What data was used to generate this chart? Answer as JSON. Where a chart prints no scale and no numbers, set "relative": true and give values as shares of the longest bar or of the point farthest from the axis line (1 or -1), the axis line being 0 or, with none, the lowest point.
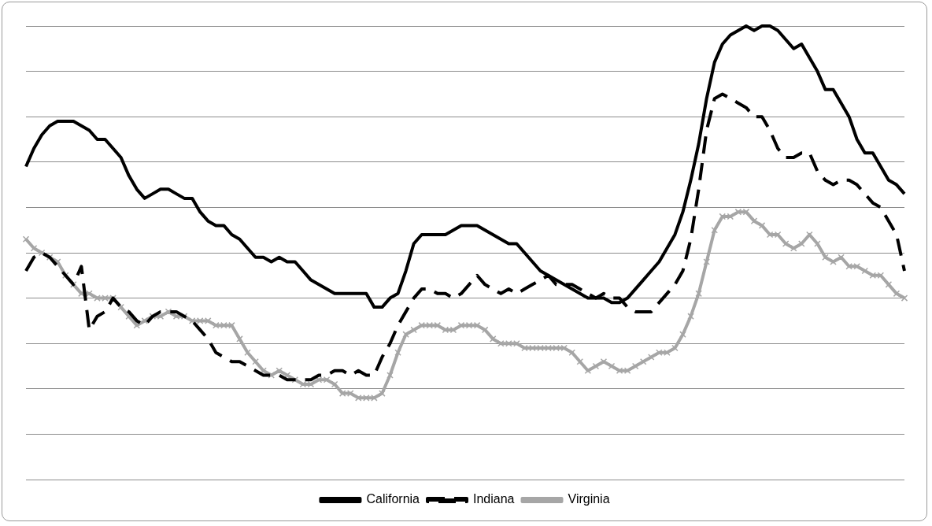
{
  "chart_data": {
    "type": "line",
    "relative": true,
    "grid": "y",
    "legend": "bottom",
    "categories": [
      null,
      null,
      null,
      null,
      null,
      null,
      null,
      null,
      null,
      null,
      null,
      null,
      null,
      null,
      null,
      null,
      null,
      null,
      null,
      null,
      null,
      null,
      null,
      null,
      null,
      null,
      null,
      null,
      null,
      null,
      null,
      null,
      null,
      null,
      null,
      null,
      null,
      null,
      null,
      null,
      null,
      null,
      null,
      null,
      null,
      null,
      null,
      null,
      null,
      null,
      null,
      null,
      null,
      null,
      null,
      null,
      null,
      null,
      null,
      null,
      null,
      null,
      null,
      null,
      null,
      null,
      null,
      null,
      null,
      null,
      null,
      null,
      null,
      null,
      null,
      null,
      null,
      null,
      null,
      null,
      null,
      null,
      null,
      null,
      null,
      null,
      null,
      null,
      null,
      null,
      null,
      null,
      null,
      null,
      null,
      null,
      null,
      null,
      null,
      null,
      null,
      null,
      null,
      null,
      null,
      null,
      null,
      null,
      null,
      null,
      null,
      null
    ],
    "series": [
      {
        "name": "California",
        "color": "#000000",
        "line_style": "solid",
        "marker": "none",
        "values": [
          0.69,
          0.73,
          0.76,
          0.78,
          0.79,
          0.79,
          0.79,
          0.78,
          0.77,
          0.75,
          0.75,
          0.73,
          0.71,
          0.67,
          0.64,
          0.62,
          0.63,
          0.64,
          0.64,
          0.63,
          0.62,
          0.62,
          0.59,
          0.57,
          0.56,
          0.56,
          0.54,
          0.53,
          0.51,
          0.49,
          0.49,
          0.48,
          0.49,
          0.48,
          0.48,
          0.46,
          0.44,
          0.43,
          0.42,
          0.41,
          0.41,
          0.41,
          0.41,
          0.41,
          0.38,
          0.38,
          0.4,
          0.41,
          0.46,
          0.52,
          0.54,
          0.54,
          0.54,
          0.54,
          0.55,
          0.56,
          0.56,
          0.56,
          0.55,
          0.54,
          0.53,
          0.52,
          0.52,
          0.5,
          0.48,
          0.46,
          0.45,
          0.44,
          0.43,
          0.42,
          0.41,
          0.4,
          0.4,
          0.4,
          0.39,
          0.39,
          0.4,
          0.42,
          0.44,
          0.46,
          0.48,
          0.51,
          0.54,
          0.59,
          0.66,
          0.74,
          0.84,
          0.92,
          0.96,
          0.98,
          0.99,
          1,
          0.99,
          1,
          1,
          0.99,
          0.97,
          0.95,
          0.96,
          0.93,
          0.9,
          0.86,
          0.86,
          0.83,
          0.8,
          0.75,
          0.72,
          0.72,
          0.69,
          0.66,
          0.65,
          0.63
        ]
      },
      {
        "name": "Indiana",
        "color": "#000000",
        "line_style": "dashed",
        "marker": "none",
        "values": [
          0.46,
          0.49,
          0.5,
          0.49,
          0.47,
          0.45,
          0.43,
          0.47,
          0.33,
          0.36,
          0.37,
          0.4,
          0.38,
          0.37,
          0.35,
          0.34,
          0.36,
          0.37,
          0.37,
          0.37,
          0.36,
          0.35,
          0.33,
          0.31,
          0.28,
          0.27,
          0.26,
          0.26,
          0.25,
          0.24,
          0.23,
          0.23,
          0.23,
          0.22,
          0.22,
          0.22,
          0.22,
          0.23,
          0.23,
          0.24,
          0.24,
          0.23,
          0.24,
          0.23,
          0.23,
          0.27,
          0.3,
          0.34,
          0.37,
          0.4,
          0.42,
          0.42,
          0.41,
          0.41,
          0.4,
          0.41,
          0.43,
          0.45,
          0.43,
          0.42,
          0.41,
          0.42,
          0.41,
          0.42,
          0.43,
          0.44,
          0.45,
          0.43,
          0.43,
          0.43,
          0.42,
          0.41,
          0.4,
          0.41,
          0.4,
          0.4,
          0.38,
          0.37,
          0.37,
          0.37,
          0.39,
          0.41,
          0.43,
          0.46,
          0.53,
          0.64,
          0.77,
          0.84,
          0.85,
          0.84,
          0.83,
          0.82,
          0.8,
          0.8,
          0.77,
          0.73,
          0.71,
          0.71,
          0.72,
          0.72,
          0.68,
          0.66,
          0.65,
          0.66,
          0.66,
          0.65,
          0.63,
          0.61,
          0.6,
          0.57,
          0.54,
          0.46
        ]
      },
      {
        "name": "Virginia",
        "color": "#a6a6a6",
        "line_style": "solid",
        "marker": "cross",
        "values": [
          0.53,
          0.51,
          0.5,
          0.49,
          0.48,
          0.45,
          0.43,
          0.41,
          0.41,
          0.4,
          0.4,
          0.4,
          0.38,
          0.36,
          0.34,
          0.35,
          0.36,
          0.36,
          0.37,
          0.36,
          0.36,
          0.35,
          0.35,
          0.35,
          0.34,
          0.34,
          0.34,
          0.31,
          0.28,
          0.26,
          0.24,
          0.23,
          0.24,
          0.23,
          0.22,
          0.21,
          0.21,
          0.22,
          0.22,
          0.21,
          0.19,
          0.19,
          0.18,
          0.18,
          0.18,
          0.19,
          0.23,
          0.28,
          0.32,
          0.33,
          0.34,
          0.34,
          0.34,
          0.33,
          0.33,
          0.34,
          0.34,
          0.34,
          0.33,
          0.31,
          0.3,
          0.3,
          0.3,
          0.29,
          0.29,
          0.29,
          0.29,
          0.29,
          0.29,
          0.28,
          0.26,
          0.24,
          0.25,
          0.26,
          0.25,
          0.24,
          0.24,
          0.25,
          0.26,
          0.27,
          0.28,
          0.28,
          0.29,
          0.32,
          0.36,
          0.41,
          0.48,
          0.55,
          0.58,
          0.58,
          0.59,
          0.59,
          0.57,
          0.56,
          0.54,
          0.54,
          0.52,
          0.51,
          0.52,
          0.54,
          0.52,
          0.49,
          0.48,
          0.49,
          0.47,
          0.47,
          0.46,
          0.45,
          0.45,
          0.43,
          0.41,
          0.4
        ]
      }
    ]
  }
}
